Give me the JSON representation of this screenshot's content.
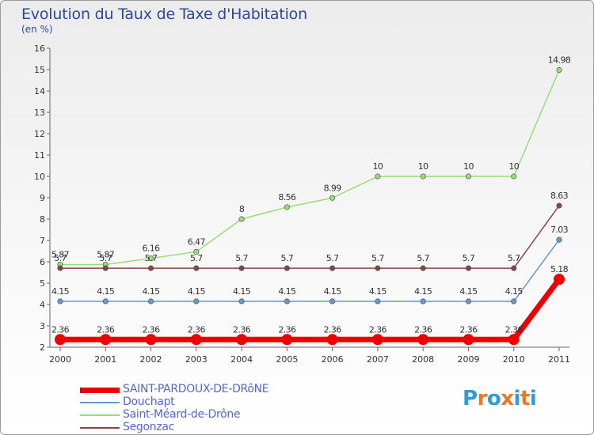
{
  "chart_data": {
    "type": "line",
    "title": "Evolution du Taux de Taxe d'Habitation",
    "subtitle": "(en %)",
    "xlabel": "",
    "ylabel": "",
    "categories": [
      "2000",
      "2001",
      "2002",
      "2003",
      "2004",
      "2005",
      "2006",
      "2007",
      "2008",
      "2009",
      "2010",
      "2011"
    ],
    "ylim": [
      2,
      16
    ],
    "yticks": [
      "2",
      "3",
      "4",
      "5",
      "6",
      "7",
      "8",
      "9",
      "10",
      "11",
      "12",
      "13",
      "14",
      "15",
      "16"
    ],
    "grid": false,
    "series": [
      {
        "name": "SAINT-PARDOUX-DE-DRôNE",
        "color": "#ee0000",
        "values": [
          2.36,
          2.36,
          2.36,
          2.36,
          2.36,
          2.36,
          2.36,
          2.36,
          2.36,
          2.36,
          2.36,
          5.18
        ],
        "labels": [
          "2.36",
          "2.36",
          "2.36",
          "2.36",
          "2.36",
          "2.36",
          "2.36",
          "2.36",
          "2.36",
          "2.36",
          "2.36",
          "5.18"
        ]
      },
      {
        "name": "Douchapt",
        "color": "#6699cc",
        "values": [
          4.15,
          4.15,
          4.15,
          4.15,
          4.15,
          4.15,
          4.15,
          4.15,
          4.15,
          4.15,
          4.15,
          7.03
        ],
        "labels": [
          "4.15",
          "4.15",
          "4.15",
          "4.15",
          "4.15",
          "4.15",
          "4.15",
          "4.15",
          "4.15",
          "4.15",
          "4.15",
          "7.03"
        ]
      },
      {
        "name": "Saint-Méard-de-Drône",
        "color": "#99dd77",
        "values": [
          5.87,
          5.87,
          6.16,
          6.47,
          8,
          8.56,
          8.99,
          10,
          10,
          10,
          10,
          14.98
        ],
        "labels": [
          "5.87",
          "5.87",
          "6.16",
          "6.47",
          "8",
          "8.56",
          "8.99",
          "10",
          "10",
          "10",
          "10",
          "14.98"
        ]
      },
      {
        "name": "Segonzac",
        "color": "#884444",
        "values": [
          5.7,
          5.7,
          5.7,
          5.7,
          5.7,
          5.7,
          5.7,
          5.7,
          5.7,
          5.7,
          5.7,
          8.63
        ],
        "labels": [
          "5.7",
          "5.7",
          "5.7",
          "5.7",
          "5.7",
          "5.7",
          "5.7",
          "5.7",
          "5.7",
          "5.7",
          "5.7",
          "8.63"
        ]
      }
    ]
  },
  "logo": {
    "letters": [
      "P",
      "r",
      "o",
      "x",
      "i",
      "t",
      "i"
    ],
    "colors": [
      "#3399dd",
      "#ee7722",
      "#3399dd",
      "#ee7722",
      "#3399dd",
      "#ee7722",
      "#3399dd"
    ]
  }
}
